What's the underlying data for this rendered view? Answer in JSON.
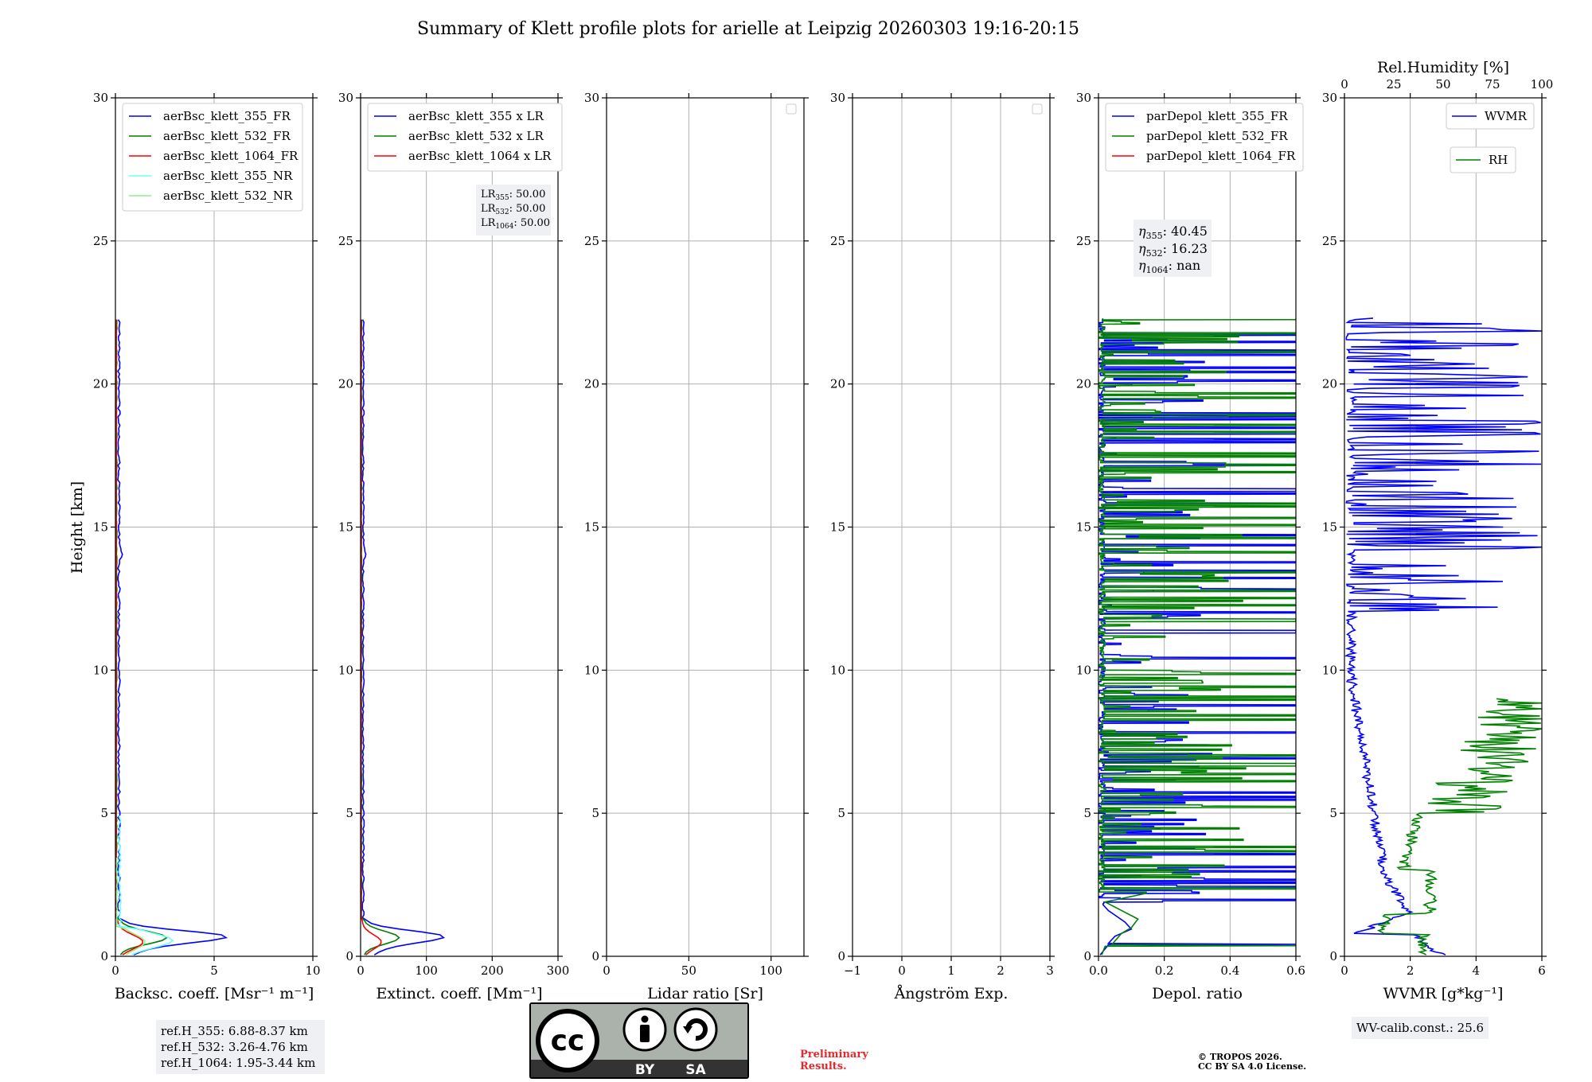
{
  "page": {
    "title": "Summary of Klett profile plots for arielle at Leipzig 20260303 19:16-20:15"
  },
  "colors": {
    "blue": "#0000ff",
    "green": "#008000",
    "red": "#ff0000",
    "cyan": "#66ffff",
    "lightgreen": "#90ee90",
    "grid": "#b0b0b0",
    "boxbg": "#eef0f4",
    "cc_gray": "#abb2ab",
    "cc_dark": "#333333",
    "prelim_red": "#e8262b"
  },
  "y_axis": {
    "label": "Height [km]",
    "ylim": [
      0,
      30
    ],
    "ticks": [
      0,
      5,
      10,
      15,
      20,
      25,
      30
    ]
  },
  "chart_data": [
    {
      "id": "bsc",
      "type": "line",
      "xlabel": "Backsc. coeff. [Msr⁻¹ m⁻¹]",
      "xlim": [
        0,
        10
      ],
      "xticks": [
        0,
        5,
        10
      ],
      "legend_position": "top-left",
      "series": [
        {
          "name": "aerBsc_klett_355_FR",
          "color": "blue",
          "profile": "bsc355"
        },
        {
          "name": "aerBsc_klett_532_FR",
          "color": "green",
          "profile": "bsc532"
        },
        {
          "name": "aerBsc_klett_1064_FR",
          "color": "red",
          "profile": "bsc1064"
        },
        {
          "name": "aerBsc_klett_355_NR",
          "color": "cyan",
          "profile": "bsc355nr"
        },
        {
          "name": "aerBsc_klett_532_NR",
          "color": "lightgreen",
          "profile": "bsc532nr"
        }
      ]
    },
    {
      "id": "ext",
      "type": "line",
      "xlabel": "Extinct. coeff. [Mm⁻¹]",
      "xlim": [
        0,
        300
      ],
      "xticks": [
        0,
        100,
        200,
        300
      ],
      "legend_position": "top-left",
      "series": [
        {
          "name": "aerBsc_klett_355 x LR",
          "color": "blue",
          "profile": "ext355"
        },
        {
          "name": "aerBsc_klett_532 x LR",
          "color": "green",
          "profile": "ext532"
        },
        {
          "name": "aerBsc_klett_1064 x LR",
          "color": "red",
          "profile": "ext1064"
        }
      ]
    },
    {
      "id": "lr",
      "type": "line",
      "xlabel": "Lidar ratio [Sr]",
      "xlim": [
        0,
        120
      ],
      "xticks": [
        0,
        50,
        100
      ],
      "legend_position": "top-right",
      "series": []
    },
    {
      "id": "ae",
      "type": "line",
      "xlabel": "Ångström Exp.",
      "xlim": [
        -1,
        3
      ],
      "xticks": [
        -1,
        0,
        1,
        2,
        3
      ],
      "legend_position": "top-right",
      "series": []
    },
    {
      "id": "depol",
      "type": "line",
      "xlabel": "Depol. ratio",
      "xlim": [
        0,
        0.6
      ],
      "xticks": [
        0.0,
        0.2,
        0.4,
        0.6
      ],
      "xtick_labels": [
        "0.0",
        "0.2",
        "0.4",
        "0.6"
      ],
      "legend_position": "top-left",
      "series": [
        {
          "name": "parDepol_klett_355_FR",
          "color": "blue",
          "profile": "dep355"
        },
        {
          "name": "parDepol_klett_532_FR",
          "color": "green",
          "profile": "dep532"
        },
        {
          "name": "parDepol_klett_1064_FR",
          "color": "red",
          "profile": "none"
        }
      ]
    },
    {
      "id": "wv",
      "type": "line",
      "xlabel": "WVMR [g*kg⁻¹]",
      "xlim": [
        0,
        6
      ],
      "xticks": [
        0,
        2,
        4,
        6
      ],
      "top_axis": {
        "label": "Rel.Humidity [%]",
        "xlim": [
          0,
          100
        ],
        "xticks": [
          0,
          25,
          50,
          75,
          100
        ]
      },
      "series": [
        {
          "name": "WVMR",
          "color": "blue",
          "profile": "wvmr"
        },
        {
          "name": "RH",
          "color": "green",
          "profile": "rh"
        }
      ]
    }
  ],
  "annotations": {
    "lr_values": [
      "50.00",
      "50.00",
      "50.00"
    ],
    "lr_labels": [
      "LR",
      "LR",
      "LR"
    ],
    "lr_subs": [
      "355",
      "532",
      "1064"
    ],
    "eta_labels": [
      "η",
      "η",
      "η"
    ],
    "eta_subs": [
      "355",
      "532",
      "1064"
    ],
    "eta_values": [
      "40.45",
      "16.23",
      "nan"
    ],
    "ref_h": [
      "ref.H_355: 6.88-8.37 km",
      "ref.H_532: 3.26-4.76 km",
      "ref.H_1064: 1.95-3.44 km"
    ],
    "wv_calib": "WV-calib.const.: 25.6"
  },
  "footer": {
    "cc_text": "cc",
    "by": "BY",
    "sa": "SA",
    "prelim_1": "Preliminary",
    "prelim_2": "Results.",
    "copy_1": "© TROPOS 2026.",
    "copy_2": "CC BY SA 4.0 License."
  }
}
